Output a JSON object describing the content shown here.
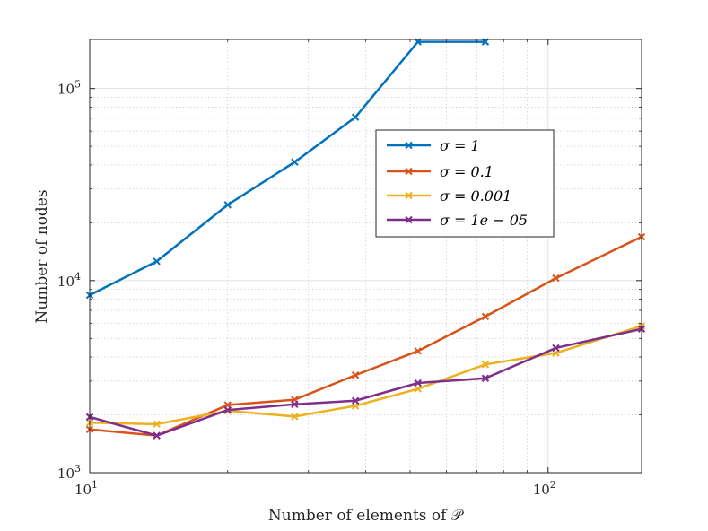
{
  "chart_data": {
    "type": "line",
    "xscale": "log",
    "yscale": "log",
    "xlim": [
      10,
      160
    ],
    "ylim": [
      1000,
      180000
    ],
    "grid": true,
    "minor_grid": true,
    "xlabel": "Number of elements of 𝒫",
    "ylabel": "Number of nodes",
    "x_ticks": [
      {
        "value": 10,
        "base": "10",
        "exp": "1"
      },
      {
        "value": 100,
        "base": "10",
        "exp": "2"
      }
    ],
    "y_ticks": [
      {
        "value": 1000,
        "base": "10",
        "exp": "3"
      },
      {
        "value": 10000,
        "base": "10",
        "exp": "4"
      },
      {
        "value": 100000,
        "base": "10",
        "exp": "5"
      }
    ],
    "legend_position": "upper-center-right",
    "series": [
      {
        "name": "σ = 1",
        "color": "#0072BD",
        "x": [
          10,
          14,
          20,
          28,
          38,
          52,
          73
        ],
        "y": [
          8400,
          12600,
          24800,
          41400,
          70900,
          175000,
          175000
        ]
      },
      {
        "name": "σ = 0.1",
        "color": "#D95319",
        "x": [
          10,
          14,
          20,
          28,
          38,
          52,
          73,
          104,
          160
        ],
        "y": [
          1680,
          1560,
          2250,
          2400,
          3220,
          4300,
          6500,
          10300,
          16900
        ]
      },
      {
        "name": "σ = 0.001",
        "color": "#EDB120",
        "x": [
          10,
          14,
          20,
          28,
          38,
          52,
          73,
          104,
          160
        ],
        "y": [
          1820,
          1790,
          2100,
          1960,
          2230,
          2730,
          3660,
          4200,
          5800
        ]
      },
      {
        "name": "σ = 1e − 05",
        "color": "#7E2F8E",
        "x": [
          10,
          14,
          20,
          28,
          38,
          52,
          73,
          104,
          160
        ],
        "y": [
          1950,
          1560,
          2120,
          2270,
          2370,
          2930,
          3100,
          4460,
          5600
        ]
      }
    ]
  }
}
